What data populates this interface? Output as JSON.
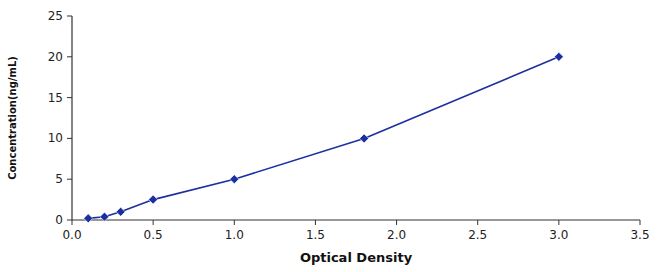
{
  "chart_data": {
    "type": "line",
    "xlabel": "Optical Density",
    "ylabel": "Concentration(ng/mL)",
    "x": [
      0.1,
      0.2,
      0.3,
      0.5,
      1.0,
      1.8,
      3.0
    ],
    "values": [
      0.2,
      0.4,
      1.0,
      2.5,
      5.0,
      10.0,
      20.0
    ],
    "color": "#1C2FA0",
    "marker": "diamond",
    "xlim": [
      0,
      3.5
    ],
    "ylim": [
      0,
      25
    ],
    "xticks": [
      {
        "value": 0,
        "label": "0.0"
      },
      0.5,
      {
        "value": 1.0,
        "label": "1.0"
      },
      1.5,
      {
        "value": 2.0,
        "label": "2.0"
      },
      2.5,
      {
        "value": 3.0,
        "label": "3.0"
      },
      3.5
    ],
    "yticks": [
      0,
      5,
      10,
      15,
      20,
      25
    ],
    "grid": false
  }
}
